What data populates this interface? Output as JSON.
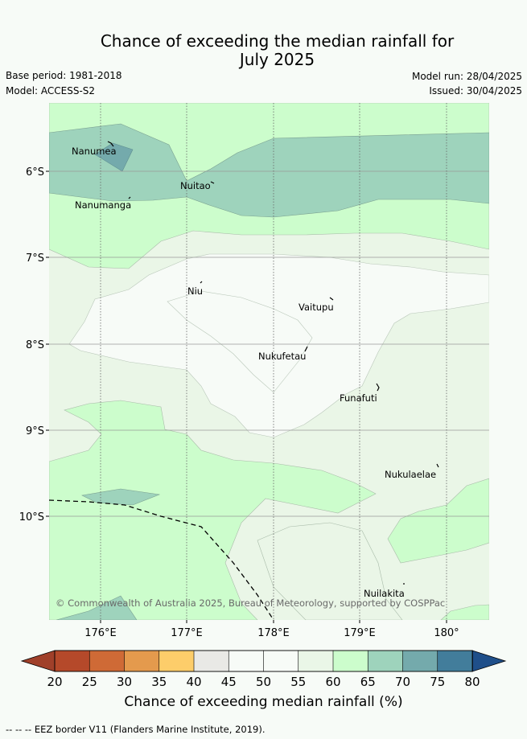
{
  "title_line1": "Chance of exceeding the median rainfall for",
  "title_line2": "July 2025",
  "meta": {
    "base_period": "Base period: 1981-2018",
    "model": "Model: ACCESS-S2",
    "model_run": "Model run: 28/04/2025",
    "issued": "Issued: 30/04/2025"
  },
  "map": {
    "lat_ticks": [
      "6°S",
      "7°S",
      "8°S",
      "9°S",
      "10°S"
    ],
    "lon_ticks": [
      "176°E",
      "177°E",
      "178°E",
      "179°E",
      "180°"
    ],
    "places": [
      "Nanumea",
      "Nuitao",
      "Nanumanga",
      "Niu",
      "Vaitupu",
      "Nukufetau",
      "Funafuti",
      "Nukulaelae",
      "Nuilakita"
    ],
    "copyright": "© Commonwealth of Australia 2025, Bureau of Meteorology, supported by COSPPac"
  },
  "colorbar": {
    "ticks": [
      "20",
      "25",
      "30",
      "35",
      "40",
      "45",
      "50",
      "55",
      "60",
      "65",
      "70",
      "75",
      "80"
    ],
    "colors": [
      "#b5492a",
      "#cf6a36",
      "#e49a4d",
      "#fdcd6a",
      "#e9e9e6",
      "#f7fbf7",
      "#f7fbf7",
      "#eaf6e7",
      "#ccfdcc",
      "#9ed3bc",
      "#74aaac",
      "#427d9b"
    ],
    "under_color": "#a0402a",
    "over_color": "#1f4f8a",
    "label": "Chance of exceeding median rainfall (%)"
  },
  "eez_note": "-- -- -- EEZ border V11 (Flanders Marine Institute, 2019)."
}
